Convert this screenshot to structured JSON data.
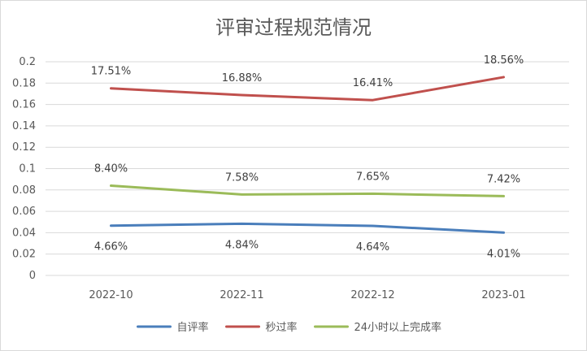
{
  "chart_data": {
    "type": "line",
    "title": "评审过程规范情况",
    "categories": [
      "2022-10",
      "2022-11",
      "2022-12",
      "2023-01"
    ],
    "ylim": [
      0,
      0.2
    ],
    "yticks": [
      "0",
      "0.02",
      "0.04",
      "0.06",
      "0.08",
      "0.1",
      "0.12",
      "0.14",
      "0.16",
      "0.18",
      "0.2"
    ],
    "grid": true,
    "legend_position": "bottom",
    "series": [
      {
        "name": "自评率",
        "color": "#4a7ebb",
        "values": [
          0.0466,
          0.0484,
          0.0464,
          0.0401
        ],
        "labels": [
          "4.66%",
          "4.84%",
          "4.64%",
          "4.01%"
        ],
        "label_position": "below"
      },
      {
        "name": "秒过率",
        "color": "#c0504d",
        "values": [
          0.1751,
          0.1688,
          0.1641,
          0.1856
        ],
        "labels": [
          "17.51%",
          "16.88%",
          "16.41%",
          "18.56%"
        ],
        "label_position": "above"
      },
      {
        "name": "24小时以上完成率",
        "color": "#9bbb59",
        "values": [
          0.084,
          0.0758,
          0.0765,
          0.0742
        ],
        "labels": [
          "8.40%",
          "7.58%",
          "7.65%",
          "7.42%"
        ],
        "label_position": "above"
      }
    ]
  }
}
